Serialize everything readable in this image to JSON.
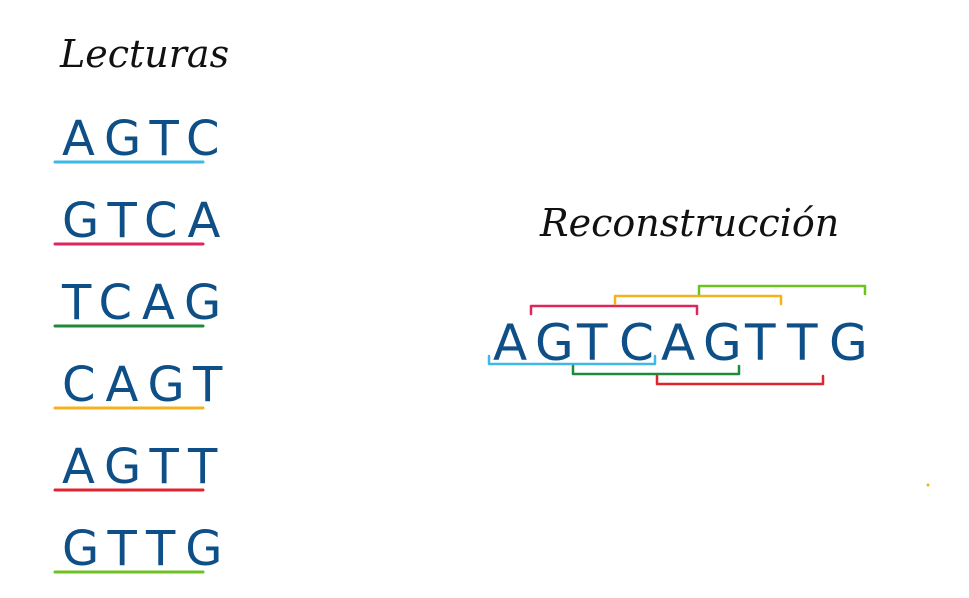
{
  "reads_title": "Lecturas",
  "reconstruction_title": "Reconstrucción",
  "reads": [
    {
      "sequence": "AGTC",
      "color": "#3fb8e8"
    },
    {
      "sequence": "GTCA",
      "color": "#e0245e"
    },
    {
      "sequence": "TCAG",
      "color": "#1f8a3a"
    },
    {
      "sequence": "CAGT",
      "color": "#f5b21e"
    },
    {
      "sequence": "AGTT",
      "color": "#e0242f"
    },
    {
      "sequence": "GTTG",
      "color": "#6cc21f"
    }
  ],
  "reconstruction": "AGTCAGTTG",
  "colors": {
    "letters": "#0d4f86",
    "title": "#111111"
  }
}
